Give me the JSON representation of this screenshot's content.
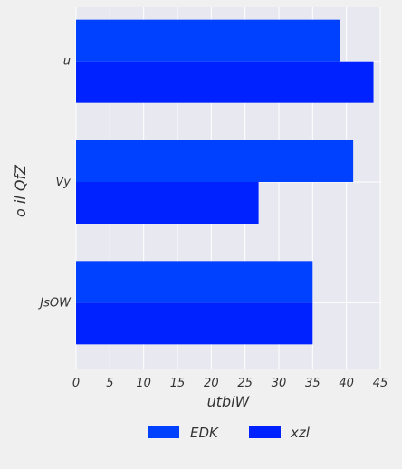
{
  "chart_data": {
    "type": "bar",
    "orientation": "horizontal",
    "categories": [
      "u",
      "Vy",
      "JsOW"
    ],
    "series": [
      {
        "name": "EDK",
        "values": [
          39,
          41,
          35
        ],
        "color": "#0040ff"
      },
      {
        "name": "xzl",
        "values": [
          44,
          27,
          35
        ],
        "color": "#0022ff"
      }
    ],
    "xlabel": "utbiW",
    "ylabel": "o il QfZ",
    "xlim": [
      0,
      45
    ],
    "xticks": [
      "0",
      "5",
      "10",
      "15",
      "20",
      "25",
      "30",
      "35",
      "40",
      "45"
    ],
    "grid": true,
    "legend": "bottom-center"
  },
  "colors": {
    "background": "#f0f0f0",
    "plot_background": "#e8e8f0",
    "grid": "#ffffff"
  }
}
